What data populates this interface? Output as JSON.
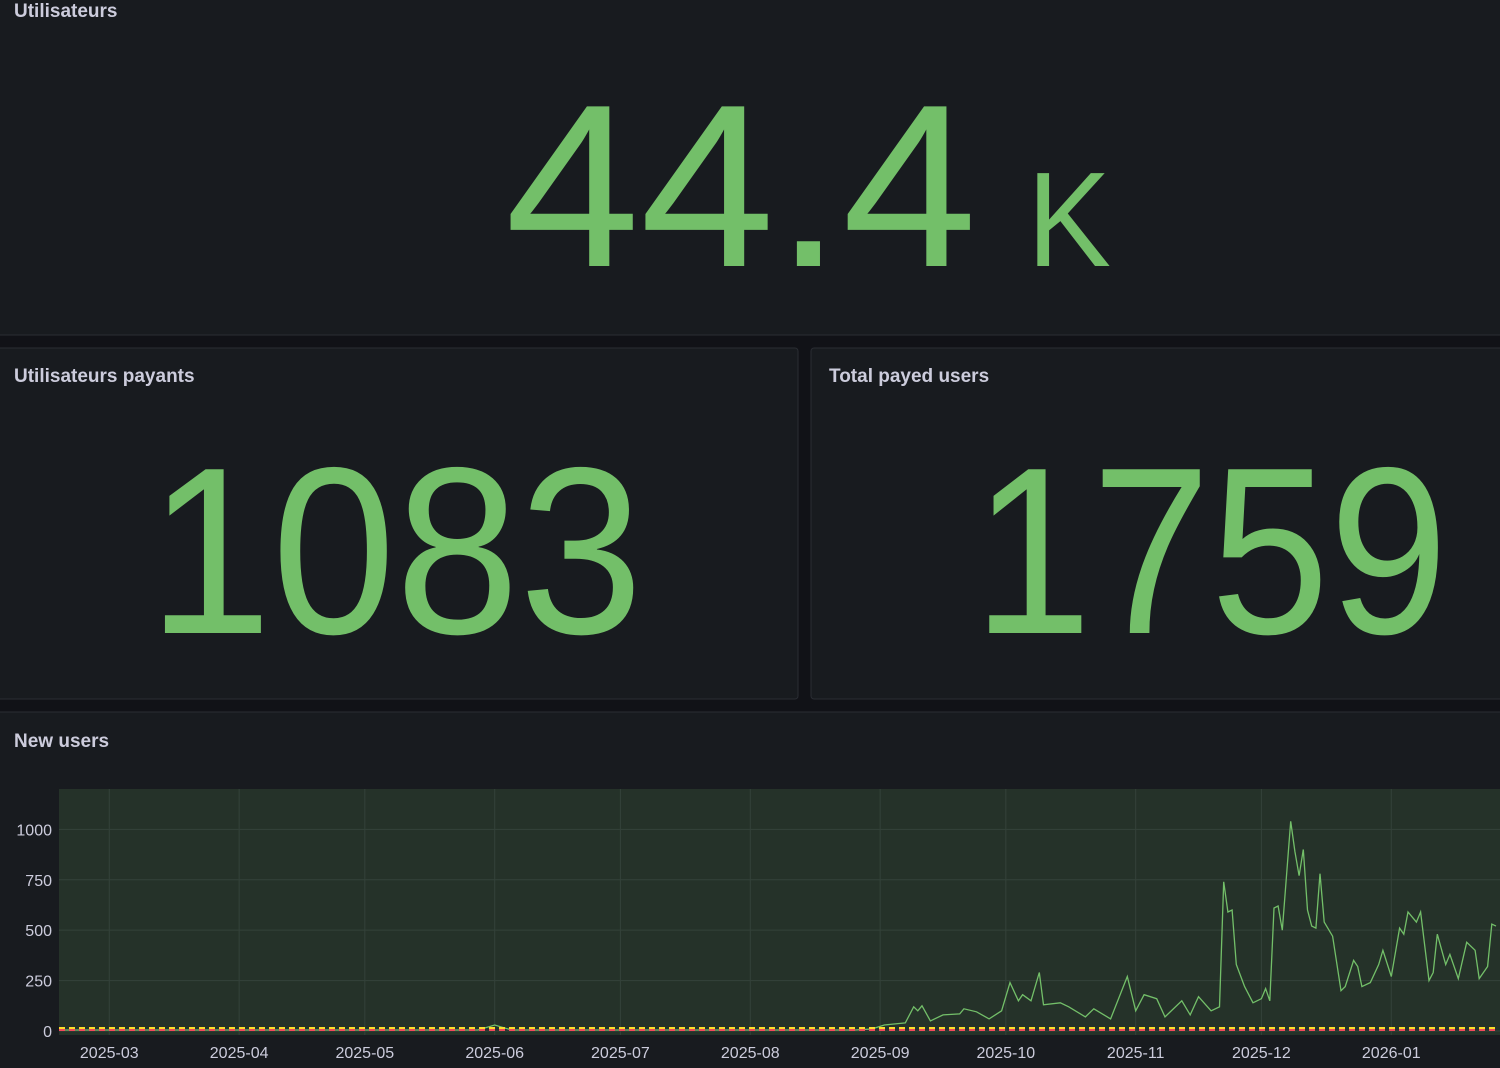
{
  "panels": [
    {
      "title": "Utilisateurs",
      "value": 44.4,
      "unit": "K"
    },
    {
      "title": "Utilisateurs payants",
      "value": 1083
    },
    {
      "title": "Total payed users",
      "value": 1759
    }
  ],
  "chart_data": {
    "type": "line",
    "title": "New users",
    "xlim": [
      0,
      343
    ],
    "ylim": [
      0,
      1200
    ],
    "yticks": [
      0,
      250,
      500,
      750,
      1000
    ],
    "xticks": [
      {
        "value": 12,
        "label": "2025-03"
      },
      {
        "value": 43,
        "label": "2025-04"
      },
      {
        "value": 73,
        "label": "2025-05"
      },
      {
        "value": 104,
        "label": "2025-06"
      },
      {
        "value": 134,
        "label": "2025-07"
      },
      {
        "value": 165,
        "label": "2025-08"
      },
      {
        "value": 196,
        "label": "2025-09"
      },
      {
        "value": 226,
        "label": "2025-10"
      },
      {
        "value": 257,
        "label": "2025-11"
      },
      {
        "value": 287,
        "label": "2025-12"
      },
      {
        "value": 318,
        "label": "2026-01"
      }
    ],
    "grid": true,
    "series": [
      {
        "color": "#73bf69",
        "dash": false,
        "x": [
          0,
          10,
          20,
          30,
          40,
          50,
          60,
          70,
          80,
          90,
          100,
          104,
          108,
          120,
          130,
          140,
          150,
          160,
          170,
          180,
          190,
          194,
          197,
          202,
          204,
          205,
          206,
          208,
          211,
          215,
          216,
          219,
          222,
          225,
          227,
          229,
          230,
          232,
          234,
          235,
          239,
          241,
          245,
          247,
          251,
          255,
          257,
          259,
          262,
          264,
          268,
          270,
          272,
          275,
          277,
          278,
          279,
          280,
          281,
          283,
          285,
          287,
          288,
          289,
          290,
          291,
          292,
          294,
          295,
          296,
          297,
          298,
          299,
          300,
          301,
          302,
          304,
          306,
          307,
          309,
          310,
          311,
          313,
          315,
          316,
          318,
          320,
          321,
          322,
          324,
          325,
          327,
          328,
          329,
          331,
          332,
          334,
          336,
          338,
          339,
          341,
          342,
          343
        ],
        "values": [
          5,
          5,
          5,
          5,
          5,
          5,
          5,
          5,
          5,
          5,
          5,
          30,
          5,
          5,
          5,
          5,
          5,
          5,
          5,
          5,
          5,
          10,
          30,
          40,
          120,
          100,
          125,
          50,
          80,
          85,
          110,
          95,
          60,
          100,
          240,
          150,
          180,
          150,
          290,
          130,
          140,
          120,
          70,
          110,
          60,
          270,
          100,
          180,
          160,
          70,
          150,
          80,
          170,
          100,
          120,
          740,
          590,
          600,
          330,
          220,
          140,
          160,
          210,
          150,
          610,
          620,
          500,
          1040,
          890,
          770,
          900,
          600,
          520,
          510,
          780,
          540,
          470,
          200,
          220,
          350,
          320,
          220,
          240,
          330,
          400,
          270,
          510,
          480,
          590,
          540,
          590,
          250,
          290,
          480,
          330,
          380,
          260,
          440,
          400,
          260,
          320,
          530,
          520
        ]
      },
      {
        "color": "#fade2a",
        "dash": true,
        "x": [
          0,
          343
        ],
        "values": [
          15,
          15
        ]
      },
      {
        "color": "#f2495c",
        "dash": true,
        "x": [
          0,
          343
        ],
        "values": [
          5,
          5
        ]
      }
    ]
  }
}
